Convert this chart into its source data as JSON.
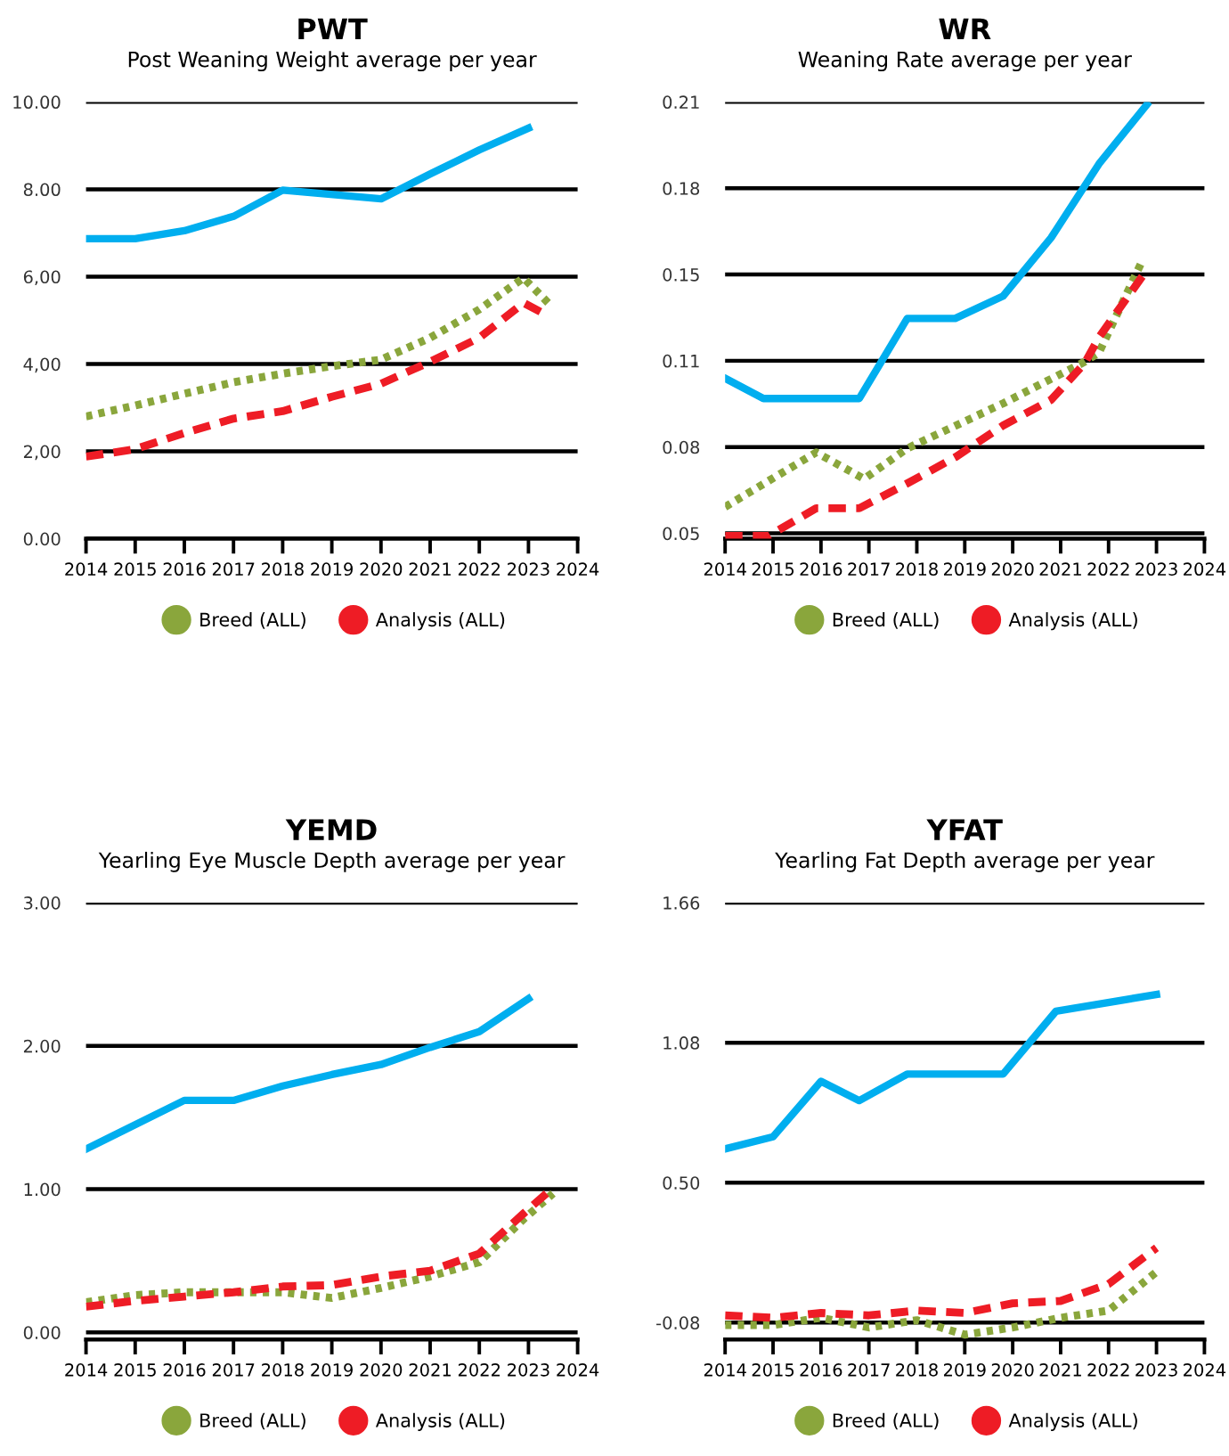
{
  "chart_data": [
    {
      "type": "line",
      "title": "PWT",
      "subtitle": "Post Weaning Weight average per year",
      "xlim": [
        2014,
        2024
      ],
      "xticks": [
        2014,
        2015,
        2016,
        2017,
        2018,
        2019,
        2020,
        2021,
        2022,
        2023,
        2024
      ],
      "ylim": [
        0,
        10
      ],
      "yticks": [
        {
          "value": 0,
          "label": "0.00"
        },
        {
          "value": 2,
          "label": "2,00"
        },
        {
          "value": 4,
          "label": "4,00"
        },
        {
          "value": 6,
          "label": "6,00"
        },
        {
          "value": 8,
          "label": "8.00"
        },
        {
          "value": 10,
          "label": "10.00"
        }
      ],
      "grid": "y",
      "legend": "bottom",
      "series": [
        {
          "color": "#00aeef",
          "line_style": "solid",
          "x": [
            2014,
            2015,
            2016,
            2017,
            2018,
            2020,
            2021,
            2022,
            2023
          ],
          "values": [
            6.87,
            6.87,
            7.05,
            7.38,
            7.98,
            7.78,
            8.35,
            8.9,
            9.4
          ]
        },
        {
          "name": "Breed (ALL)",
          "color": "#8aa63c",
          "line_style": "dotted",
          "x": [
            2014,
            2015,
            2016,
            2017,
            2018,
            2019,
            2020,
            2021,
            2022,
            2022.9,
            2023.4
          ],
          "values": [
            2.8,
            3.05,
            3.32,
            3.58,
            3.78,
            3.95,
            4.1,
            4.6,
            5.25,
            5.97,
            5.4
          ]
        },
        {
          "name": "Analysis (ALL)",
          "color": "#ee1c25",
          "line_style": "dashed",
          "x": [
            2014,
            2015,
            2016,
            2017,
            2018,
            2019,
            2020,
            2021,
            2022,
            2022.9,
            2023.4
          ],
          "values": [
            1.88,
            2.05,
            2.42,
            2.75,
            2.92,
            3.25,
            3.55,
            4.05,
            4.6,
            5.4,
            5.1
          ]
        }
      ]
    },
    {
      "type": "line",
      "title": "WR",
      "subtitle": "Weaning Rate average per year",
      "xlim": [
        2014,
        2024
      ],
      "xticks": [
        2014,
        2015,
        2016,
        2017,
        2018,
        2019,
        2020,
        2021,
        2022,
        2023,
        2024
      ],
      "ylim": [
        0.048,
        0.21
      ],
      "yticks": [
        {
          "value": 0.05,
          "label": "0.05"
        },
        {
          "value": 0.082,
          "label": "0.08"
        },
        {
          "value": 0.114,
          "label": "0.11"
        },
        {
          "value": 0.146,
          "label": "0.15"
        },
        {
          "value": 0.178,
          "label": "0.18"
        },
        {
          "value": 0.21,
          "label": "0.21"
        }
      ],
      "grid": "y",
      "legend": "bottom",
      "series": [
        {
          "color": "#00aeef",
          "line_style": "solid",
          "x": [
            2014,
            2014.8,
            2016.8,
            2017.8,
            2018.8,
            2019.8,
            2020.8,
            2021.8,
            2022.8
          ],
          "values": [
            0.1075,
            0.1,
            0.1,
            0.1297,
            0.1297,
            0.138,
            0.1596,
            0.187,
            0.209
          ]
        },
        {
          "name": "Breed (ALL)",
          "color": "#8aa63c",
          "line_style": "dotted",
          "x": [
            2014,
            2015.9,
            2016.9,
            2017.8,
            2019.8,
            2021.5,
            2021.8,
            2022.7
          ],
          "values": [
            0.0598,
            0.08,
            0.0702,
            0.0815,
            0.0982,
            0.1136,
            0.117,
            0.151
          ]
        },
        {
          "name": "Analysis (ALL)",
          "color": "#ee1c25",
          "line_style": "dashed",
          "x": [
            2014,
            2014.9,
            2015.9,
            2016.8,
            2017.8,
            2018.8,
            2019.8,
            2020.8,
            2021.5,
            2021.8,
            2022.8
          ],
          "values": [
            0.049,
            0.049,
            0.0593,
            0.0593,
            0.0685,
            0.0782,
            0.09,
            0.0995,
            0.113,
            0.1227,
            0.1477
          ]
        }
      ]
    },
    {
      "type": "line",
      "title": "YEMD",
      "subtitle": "Yearling Eye Muscle Depth average per year",
      "xlim": [
        2014,
        2024
      ],
      "xticks": [
        2014,
        2015,
        2016,
        2017,
        2018,
        2019,
        2020,
        2021,
        2022,
        2023,
        2024
      ],
      "ylim": [
        -0.05,
        3
      ],
      "yticks": [
        {
          "value": 0,
          "label": "0.00"
        },
        {
          "value": 1,
          "label": "1.00"
        },
        {
          "value": 2,
          "label": "2.00"
        },
        {
          "value": 3,
          "label": "3.00"
        }
      ],
      "grid": "y",
      "legend": "bottom",
      "series": [
        {
          "color": "#00aeef",
          "line_style": "solid",
          "x": [
            2014,
            2016,
            2017,
            2018,
            2019,
            2020,
            2021,
            2022,
            2023
          ],
          "values": [
            1.28,
            1.62,
            1.62,
            1.72,
            1.8,
            1.87,
            1.99,
            2.1,
            2.33
          ]
        },
        {
          "name": "Breed (ALL)",
          "color": "#8aa63c",
          "line_style": "dotted",
          "x": [
            2014,
            2015,
            2016,
            2017,
            2018,
            2019,
            2020,
            2021,
            2022,
            2022.9,
            2023.5
          ],
          "values": [
            0.21,
            0.26,
            0.28,
            0.28,
            0.28,
            0.24,
            0.31,
            0.39,
            0.49,
            0.79,
            0.97
          ]
        },
        {
          "name": "Analysis (ALL)",
          "color": "#ee1c25",
          "line_style": "dashed",
          "x": [
            2014,
            2015,
            2016,
            2017,
            2018,
            2019,
            2020,
            2021,
            2022,
            2022.9,
            2023.4
          ],
          "values": [
            0.18,
            0.22,
            0.25,
            0.28,
            0.32,
            0.33,
            0.39,
            0.43,
            0.55,
            0.83,
            0.98
          ]
        }
      ]
    },
    {
      "type": "line",
      "title": "YFAT",
      "subtitle": "Yearling Fat Depth average per year",
      "xlim": [
        2014,
        2024
      ],
      "xticks": [
        2014,
        2015,
        2016,
        2017,
        2018,
        2019,
        2020,
        2021,
        2022,
        2023,
        2024
      ],
      "ylim": [
        -0.15,
        1.66
      ],
      "yticks": [
        {
          "value": -0.08,
          "label": "-0.08"
        },
        {
          "value": 0.5,
          "label": "0.50"
        },
        {
          "value": 1.08,
          "label": "1.08"
        },
        {
          "value": 1.66,
          "label": "1.66"
        }
      ],
      "grid": "y",
      "legend": "bottom",
      "series": [
        {
          "color": "#00aeef",
          "line_style": "solid",
          "x": [
            2014,
            2015,
            2016,
            2016.8,
            2017.8,
            2019.8,
            2020.9,
            2023
          ],
          "values": [
            0.64,
            0.69,
            0.92,
            0.84,
            0.95,
            0.95,
            1.21,
            1.28
          ]
        },
        {
          "name": "Breed (ALL)",
          "color": "#8aa63c",
          "line_style": "dotted",
          "x": [
            2014,
            2015,
            2016,
            2017,
            2018,
            2019,
            2020,
            2021,
            2022,
            2023
          ],
          "values": [
            -0.09,
            -0.09,
            -0.06,
            -0.1,
            -0.07,
            -0.13,
            -0.1,
            -0.06,
            -0.03,
            0.13
          ]
        },
        {
          "name": "Analysis (ALL)",
          "color": "#ee1c25",
          "line_style": "dashed",
          "x": [
            2014,
            2015,
            2016,
            2017,
            2018,
            2019,
            2020,
            2021,
            2022,
            2023
          ],
          "values": [
            -0.05,
            -0.06,
            -0.04,
            -0.05,
            -0.03,
            -0.04,
            0.0,
            0.01,
            0.08,
            0.23
          ]
        }
      ]
    }
  ]
}
